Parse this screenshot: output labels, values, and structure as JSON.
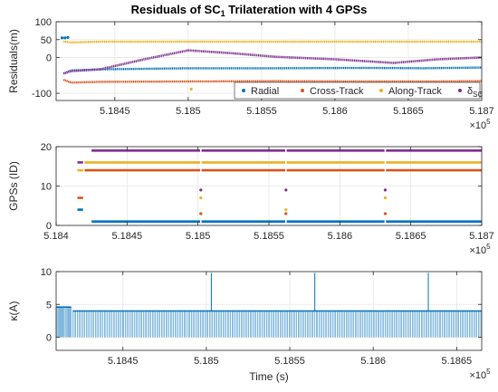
{
  "chart_data": [
    {
      "type": "scatter",
      "title": "Residuals of SC",
      "title_sub": "1",
      "title_rest": " Trilateration with 4 GPSs",
      "xlabel": "",
      "ylabel": "Residuals(m)",
      "xlim": [
        518410,
        518700
      ],
      "ylim": [
        -120,
        100
      ],
      "xticks": [
        518450,
        518500,
        518550,
        518600,
        518650,
        518700
      ],
      "xticklabels": [
        "5.1845",
        "5.185",
        "5.1855",
        "5.186",
        "5.1865",
        "5.187"
      ],
      "yticks": [
        -100,
        0,
        50,
        100
      ],
      "yticklabels": [
        "-100",
        "0",
        "50",
        "100"
      ],
      "exponent_base": "×10",
      "exponent": "5",
      "grid": true,
      "legend": "bottom-right",
      "series": [
        {
          "name": "Radial",
          "color": "#0072BD",
          "x": [
            518415,
            518420,
            518440,
            518500,
            518560,
            518620,
            518660,
            518700
          ],
          "y": [
            -45,
            -36,
            -33,
            -30,
            -30,
            -29,
            -30,
            -28
          ]
        },
        {
          "name": "Cross-Track",
          "color": "#D95319",
          "x": [
            518415,
            518420,
            518440,
            518500,
            518560,
            518620,
            518660,
            518700
          ],
          "y": [
            -62,
            -70,
            -68,
            -67,
            -66,
            -67,
            -67,
            -66
          ]
        },
        {
          "name": "Along-Track",
          "color": "#EDB120",
          "x": [
            518415,
            518420,
            518440,
            518500,
            518560,
            518620,
            518660,
            518700
          ],
          "y": [
            45,
            42,
            44,
            44,
            44,
            44,
            44,
            44
          ]
        },
        {
          "name": "δ",
          "name_sub": "SC",
          "color": "#7E2F8E",
          "x": [
            518415,
            518420,
            518440,
            518470,
            518500,
            518530,
            518560,
            518600,
            518640,
            518670,
            518700
          ],
          "y": [
            -45,
            -38,
            -33,
            -5,
            20,
            12,
            2,
            -5,
            -15,
            -5,
            0
          ]
        }
      ],
      "extra_points": [
        {
          "x": [
            518414,
            518416,
            518418
          ],
          "y": [
            55,
            55,
            56
          ],
          "color": "#0072BD"
        },
        {
          "x": [
            518502,
            518633
          ],
          "y": [
            -88,
            -92
          ],
          "color": "#EDB120"
        }
      ]
    },
    {
      "type": "scatter",
      "xlabel": "",
      "ylabel": "GPSs (ID)",
      "xlim": [
        518400,
        518700
      ],
      "ylim": [
        0,
        20
      ],
      "xticks": [
        518400,
        518450,
        518500,
        518550,
        518600,
        518650,
        518700
      ],
      "xticklabels": [
        "5.184",
        "5.1845",
        "5.185",
        "5.1855",
        "5.186",
        "5.1865",
        "5.187"
      ],
      "yticks": [
        0,
        10,
        20
      ],
      "yticklabels": [
        "0",
        "10",
        "20"
      ],
      "exponent_base": "×10",
      "exponent": "5",
      "grid": true,
      "series": [
        {
          "color": "#0072BD",
          "lines": [
            {
              "x": [
                518415,
                518419
              ],
              "y": 4
            },
            {
              "x": [
                518425,
                518700
              ],
              "y": 1
            }
          ]
        },
        {
          "color": "#D95319",
          "lines": [
            {
              "x": [
                518415,
                518419
              ],
              "y": 7
            },
            {
              "x": [
                518420,
                518700
              ],
              "y": 14
            }
          ]
        },
        {
          "color": "#EDB120",
          "lines": [
            {
              "x": [
                518415,
                518419
              ],
              "y": 14
            },
            {
              "x": [
                518420,
                518700
              ],
              "y": 16
            }
          ]
        },
        {
          "color": "#7E2F8E",
          "lines": [
            {
              "x": [
                518415,
                518419
              ],
              "y": 16
            },
            {
              "x": [
                518425,
                518700
              ],
              "y": 19
            }
          ]
        }
      ],
      "dots": [
        {
          "x": 518502,
          "y": 9,
          "color": "#7E2F8E"
        },
        {
          "x": 518502,
          "y": 7,
          "color": "#EDB120"
        },
        {
          "x": 518502,
          "y": 3,
          "color": "#D95319"
        },
        {
          "x": 518562,
          "y": 9,
          "color": "#7E2F8E"
        },
        {
          "x": 518562,
          "y": 4,
          "color": "#EDB120"
        },
        {
          "x": 518562,
          "y": 3,
          "color": "#D95319"
        },
        {
          "x": 518632,
          "y": 9,
          "color": "#7E2F8E"
        },
        {
          "x": 518632,
          "y": 7,
          "color": "#EDB120"
        },
        {
          "x": 518632,
          "y": 3,
          "color": "#D95319"
        }
      ]
    },
    {
      "type": "line",
      "xlabel": "Time (s)",
      "ylabel": "κ(A)",
      "xlim": [
        518410,
        518665
      ],
      "ylim": [
        -2,
        10
      ],
      "xticks": [
        518450,
        518500,
        518550,
        518600,
        518650
      ],
      "xticklabels": [
        "5.1845",
        "5.185",
        "5.1855",
        "5.186",
        "5.1865"
      ],
      "yticks": [
        0,
        5,
        10
      ],
      "yticklabels": [
        "0",
        "5",
        "10"
      ],
      "exponent_base": "×10",
      "exponent": "5",
      "grid": true,
      "series": [
        {
          "color": "#0072BD",
          "baseline": 4,
          "early_level": 4.6,
          "early_range": [
            518410,
            518419
          ],
          "spike_low": 0,
          "spikes_high": [
            {
              "x": 518503,
              "y": 9.8
            },
            {
              "x": 518565,
              "y": 9.8
            },
            {
              "x": 518633,
              "y": 9.8
            }
          ]
        }
      ]
    }
  ]
}
